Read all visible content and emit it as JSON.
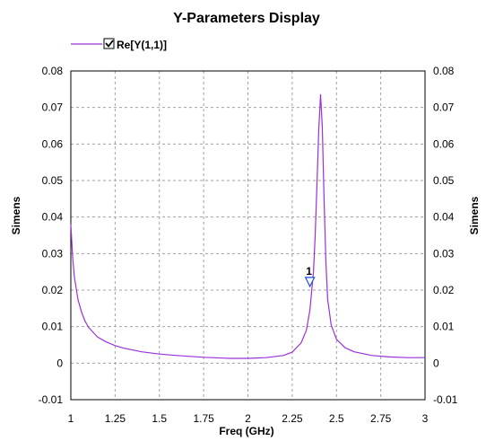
{
  "chart_data": {
    "type": "line",
    "title": "Y-Parameters Display",
    "xlabel": "Freq (GHz)",
    "ylabel": "Simens",
    "ylabel_right": "Simens",
    "xlim": [
      1,
      3
    ],
    "ylim": [
      -0.01,
      0.08
    ],
    "x_ticks": [
      "1",
      "1.25",
      "1.5",
      "1.75",
      "2",
      "2.25",
      "2.5",
      "2.75",
      "3"
    ],
    "y_ticks": [
      "-0.01",
      "0",
      "0.01",
      "0.02",
      "0.03",
      "0.04",
      "0.05",
      "0.06",
      "0.07",
      "0.08"
    ],
    "grid": true,
    "legend": {
      "placement": "top-left",
      "checked": true
    },
    "series": [
      {
        "name": "Re[Y(1,1)]",
        "color": "#9b30d9",
        "x": [
          1.0,
          1.01,
          1.02,
          1.04,
          1.06,
          1.08,
          1.1,
          1.15,
          1.2,
          1.25,
          1.3,
          1.4,
          1.5,
          1.6,
          1.75,
          1.9,
          2.0,
          2.1,
          2.2,
          2.25,
          2.3,
          2.33,
          2.35,
          2.37,
          2.38,
          2.39,
          2.4,
          2.41,
          2.42,
          2.43,
          2.44,
          2.45,
          2.47,
          2.5,
          2.55,
          2.6,
          2.7,
          2.8,
          2.9,
          3.0
        ],
        "values": [
          0.038,
          0.029,
          0.0235,
          0.0175,
          0.014,
          0.0115,
          0.0098,
          0.0072,
          0.0058,
          0.0048,
          0.0041,
          0.0031,
          0.0025,
          0.0021,
          0.0016,
          0.0013,
          0.0013,
          0.0015,
          0.0021,
          0.003,
          0.0055,
          0.009,
          0.0145,
          0.025,
          0.035,
          0.049,
          0.064,
          0.0735,
          0.065,
          0.045,
          0.028,
          0.0175,
          0.0105,
          0.0065,
          0.0042,
          0.0031,
          0.0021,
          0.0017,
          0.0015,
          0.0015
        ]
      }
    ],
    "markers": [
      {
        "label": "1",
        "x": 2.35,
        "y": 0.022
      }
    ]
  }
}
